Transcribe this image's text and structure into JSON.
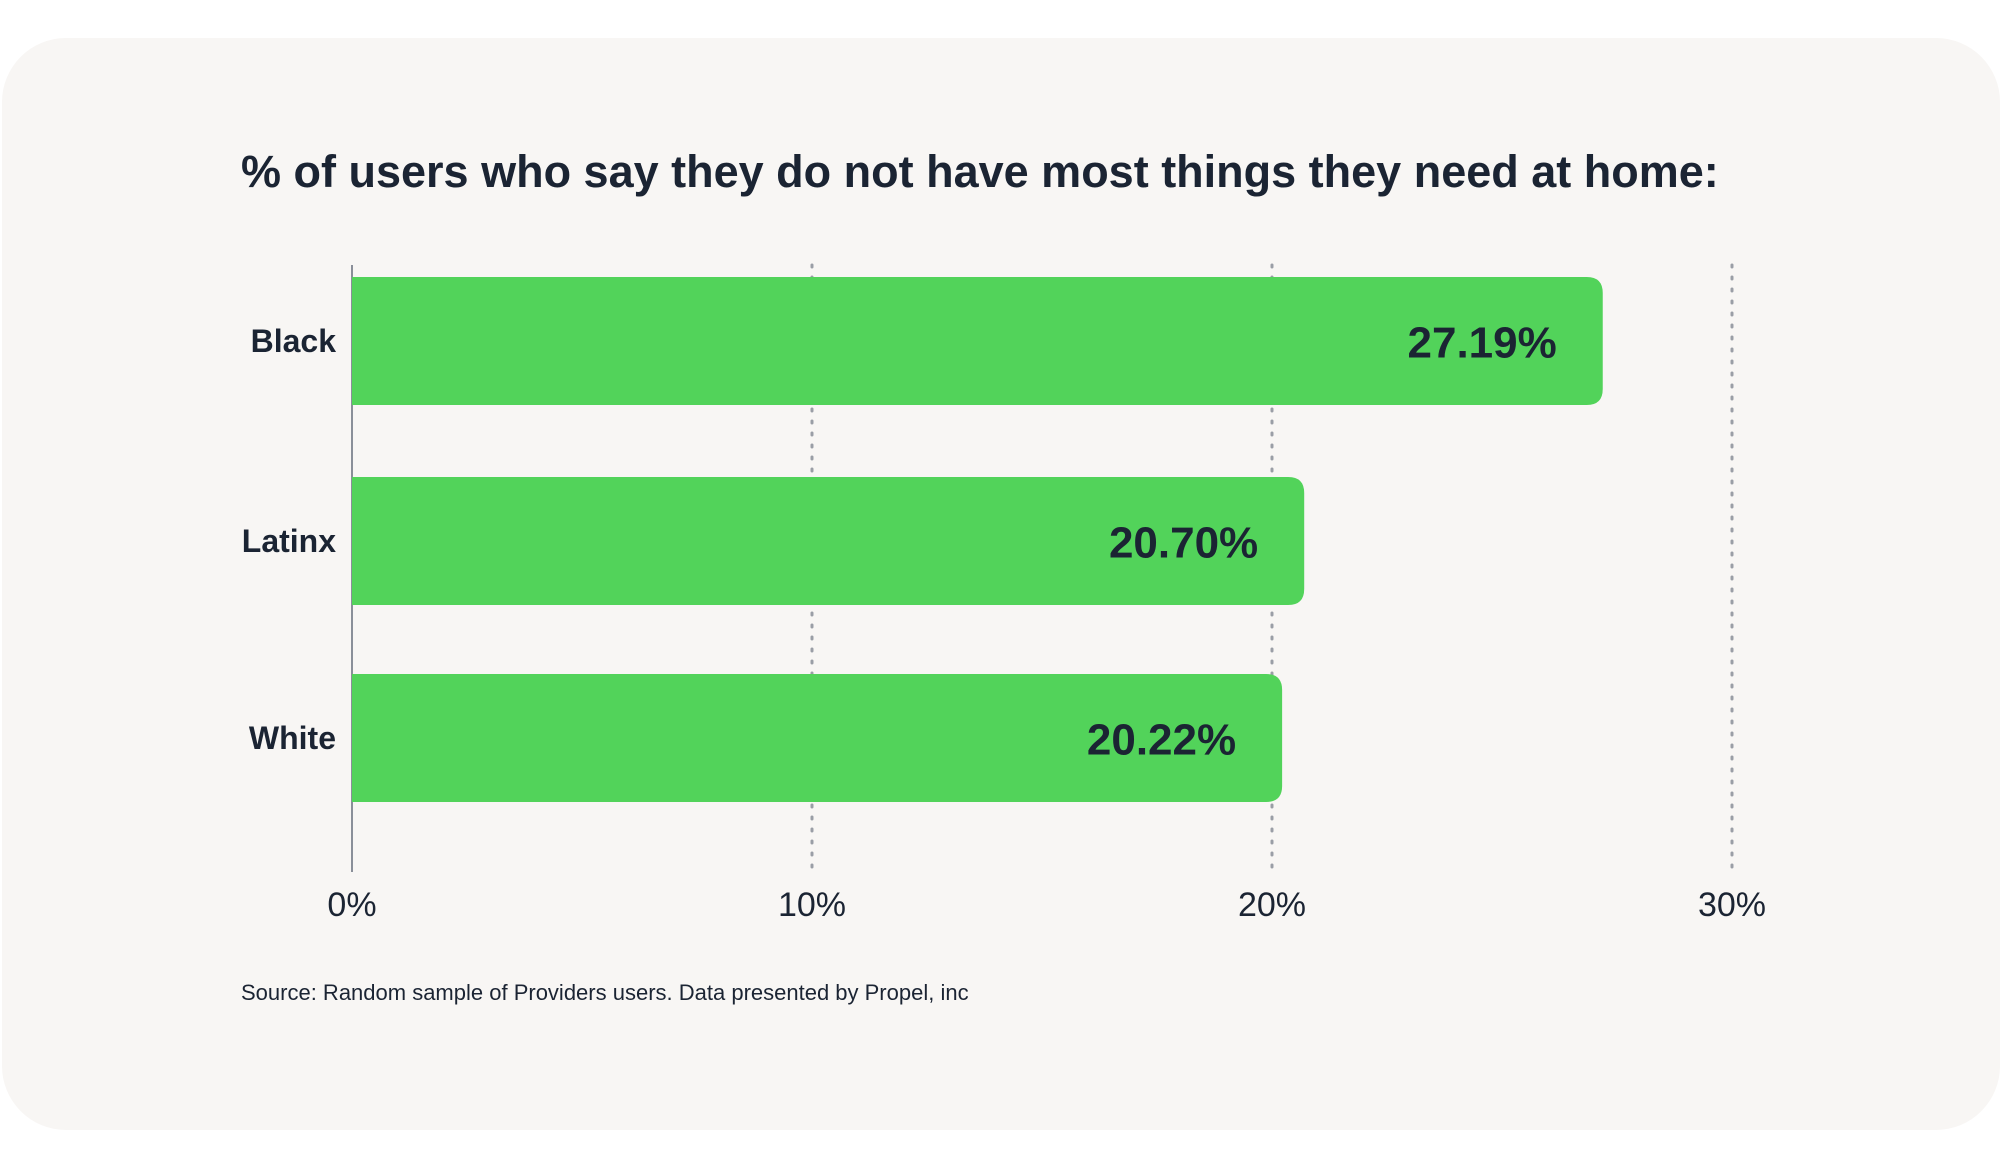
{
  "chart_data": {
    "type": "bar",
    "orientation": "horizontal",
    "title": "% of users who say they do not have most things they need at home:",
    "categories": [
      "Black",
      "Latinx",
      "White"
    ],
    "values": [
      27.19,
      20.7,
      20.22
    ],
    "data_labels": [
      "27.19%",
      "20.70%",
      "20.22%"
    ],
    "xlim": [
      0,
      30
    ],
    "x_ticks": [
      0,
      10,
      20,
      30
    ],
    "x_tick_labels": [
      "0%",
      "10%",
      "20%",
      "30%"
    ],
    "xlabel": "",
    "ylabel": "",
    "grid": "vertical dotted",
    "legend": "none",
    "source": "Source: Random sample of Providers users. Data presented by Propel, inc"
  },
  "colors": {
    "bar": "#52d35a",
    "text": "#1b2433",
    "card_background": "#f8f6f4",
    "axis": "#8a8f99",
    "grid": "#9a9ea6"
  }
}
